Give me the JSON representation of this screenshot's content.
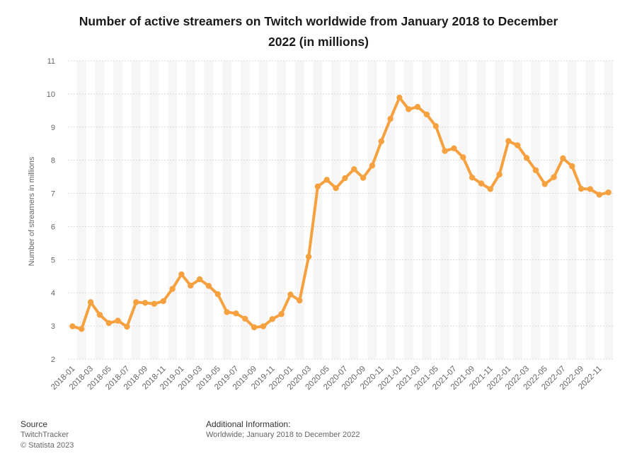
{
  "title": "Number of active streamers on Twitch worldwide from January 2018 to December 2022 (in millions)",
  "colors": {
    "line": "#f6a13f",
    "grid": "#d9d9d9",
    "band": "#f6f6f6",
    "axis_text": "#666666"
  },
  "chart_data": {
    "type": "line",
    "title": "Number of active streamers on Twitch worldwide from January 2018 to December 2022 (in millions)",
    "xlabel": "",
    "ylabel": "Number of streamers in millions",
    "ylim": [
      2,
      11
    ],
    "yticks": [
      2,
      3,
      4,
      5,
      6,
      7,
      8,
      9,
      10,
      11
    ],
    "grid": true,
    "categories": [
      "2018-01",
      "2018-02",
      "2018-03",
      "2018-04",
      "2018-05",
      "2018-06",
      "2018-07",
      "2018-08",
      "2018-09",
      "2018-10",
      "2018-11",
      "2018-12",
      "2019-01",
      "2019-02",
      "2019-03",
      "2019-04",
      "2019-05",
      "2019-06",
      "2019-07",
      "2019-08",
      "2019-09",
      "2019-10",
      "2019-11",
      "2019-12",
      "2020-01",
      "2020-02",
      "2020-03",
      "2020-04",
      "2020-05",
      "2020-06",
      "2020-07",
      "2020-08",
      "2020-09",
      "2020-10",
      "2020-11",
      "2020-12",
      "2021-01",
      "2021-02",
      "2021-03",
      "2021-04",
      "2021-05",
      "2021-06",
      "2021-07",
      "2021-08",
      "2021-09",
      "2021-10",
      "2021-11",
      "2021-12",
      "2022-01",
      "2022-02",
      "2022-03",
      "2022-04",
      "2022-05",
      "2022-06",
      "2022-07",
      "2022-08",
      "2022-09",
      "2022-10",
      "2022-11",
      "2022-12"
    ],
    "tick_labels": [
      "2018-01",
      "2018-03",
      "2018-05",
      "2018-07",
      "2018-09",
      "2018-11",
      "2019-01",
      "2019-03",
      "2019-05",
      "2019-07",
      "2019-09",
      "2019-11",
      "2020-01",
      "2020-03",
      "2020-05",
      "2020-07",
      "2020-09",
      "2020-11",
      "2021-01",
      "2021-03",
      "2021-05",
      "2021-07",
      "2021-09",
      "2021-11",
      "2022-01",
      "2022-03",
      "2022-05",
      "2022-07",
      "2022-09",
      "2022-11"
    ],
    "series": [
      {
        "name": "Active streamers",
        "values": [
          2.99,
          2.91,
          3.72,
          3.34,
          3.09,
          3.16,
          2.98,
          3.72,
          3.7,
          3.67,
          3.75,
          4.12,
          4.56,
          4.22,
          4.41,
          4.21,
          3.96,
          3.42,
          3.38,
          3.22,
          2.96,
          2.99,
          3.21,
          3.36,
          3.95,
          3.77,
          5.09,
          7.21,
          7.41,
          7.16,
          7.46,
          7.73,
          7.47,
          7.84,
          8.57,
          9.25,
          9.89,
          9.54,
          9.61,
          9.38,
          9.03,
          8.28,
          8.36,
          8.09,
          7.48,
          7.3,
          7.13,
          7.57,
          8.58,
          8.45,
          8.07,
          7.7,
          7.28,
          7.49,
          8.06,
          7.82,
          7.14,
          7.13,
          6.96,
          7.03
        ]
      }
    ]
  },
  "footer": {
    "source_label": "Source",
    "source_value": "TwitchTracker",
    "copyright": "© Statista 2023",
    "info_label": "Additional Information:",
    "info_value": "Worldwide; January 2018 to December 2022"
  }
}
